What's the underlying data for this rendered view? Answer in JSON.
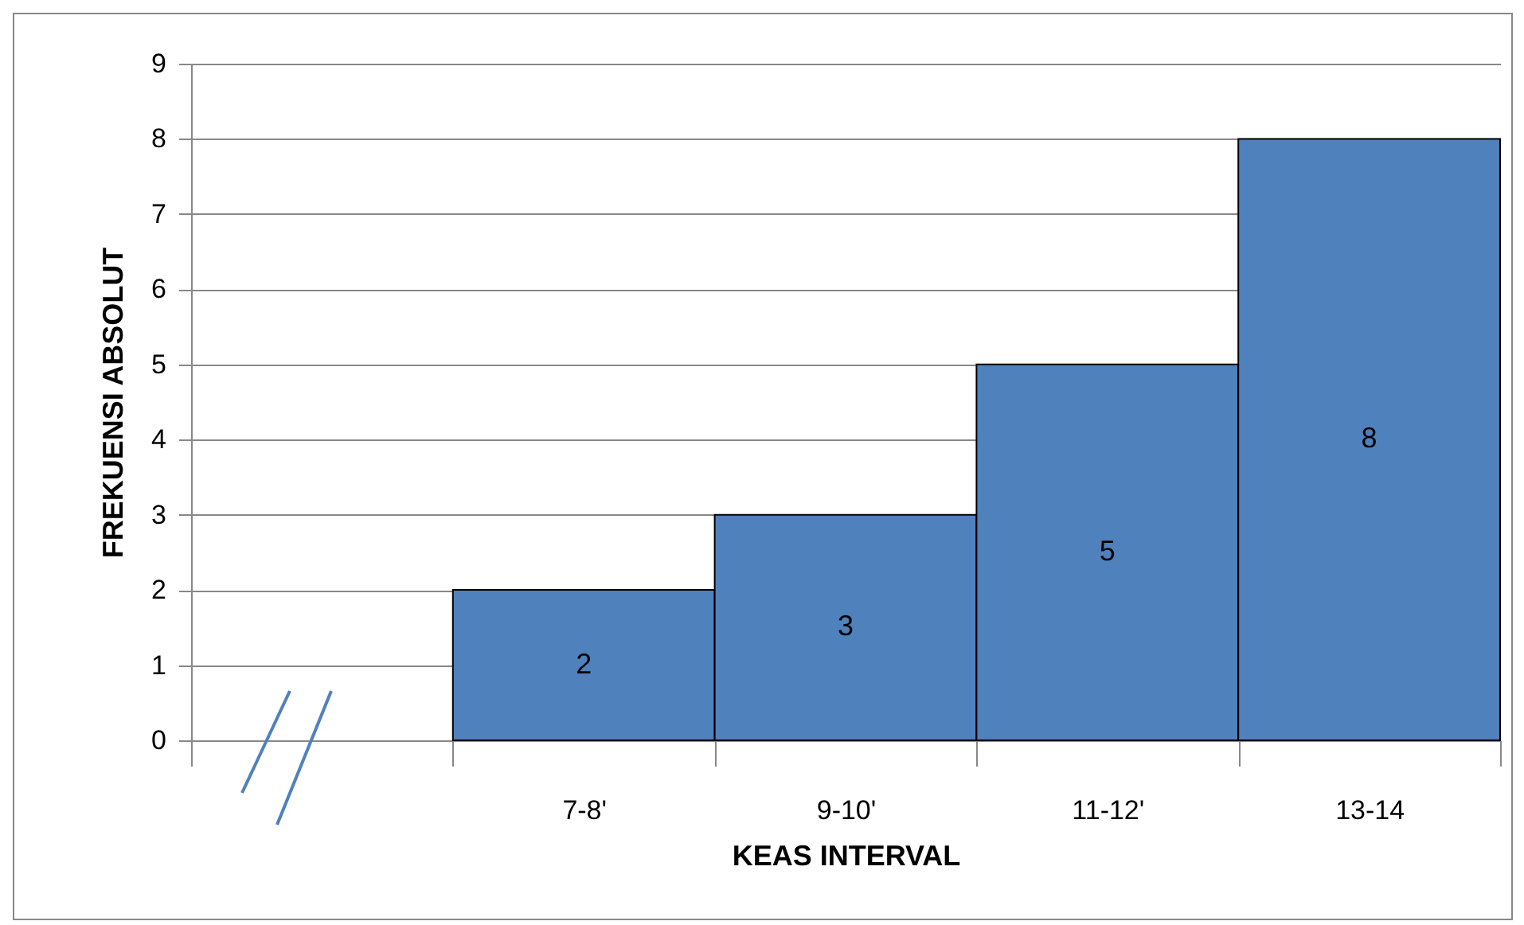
{
  "chart_data": {
    "type": "bar",
    "xlabel": "KEAS INTERVAL",
    "ylabel": "FREKUENSI ABSOLUT",
    "categories": [
      null,
      "7-8'",
      "9-10'",
      "11-12'",
      "13-14"
    ],
    "values": [
      null,
      2,
      3,
      5,
      8
    ],
    "color": "#4f81bd",
    "ylim": [
      0,
      9
    ],
    "yticks": [
      0,
      1,
      2,
      3,
      4,
      5,
      6,
      7,
      8,
      9
    ],
    "grid": "y",
    "data_labels": true
  }
}
